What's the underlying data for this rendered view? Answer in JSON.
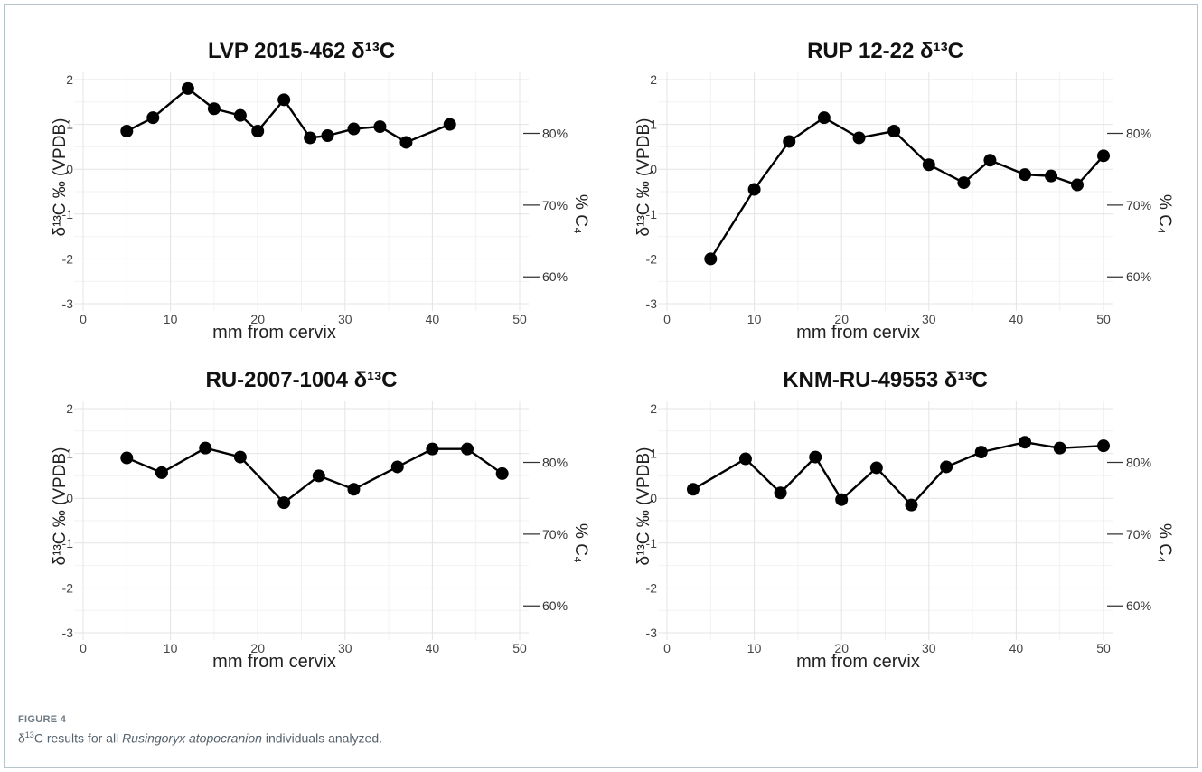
{
  "figure": {
    "label": "FIGURE 4",
    "caption_prefix": "δ",
    "caption_sup": "13",
    "caption_mid": "C results for all ",
    "caption_italic": "Rusingoryx atopocranion",
    "caption_suffix": " individuals analyzed."
  },
  "chart_data": [
    {
      "type": "line",
      "title": "LVP 2015-462 δ¹³C",
      "xlabel": "mm from cervix",
      "ylabel": "δ¹³C ‰ (VPDB)",
      "y2label": "% C₄",
      "xlim": [
        0,
        50
      ],
      "ylim": [
        -3,
        2
      ],
      "xticks": [
        "0",
        "10",
        "20",
        "30",
        "40",
        "50"
      ],
      "yticks": [
        "2",
        "1",
        "0",
        "-1",
        "-2",
        "-3"
      ],
      "y2ticks": [
        {
          "value": 0.8,
          "label": "80%"
        },
        {
          "value": -0.8,
          "label": "70%"
        },
        {
          "value": -2.4,
          "label": "60%"
        }
      ],
      "grid": true,
      "x": [
        5,
        8,
        12,
        15,
        18,
        20,
        23,
        26,
        28,
        31,
        34,
        37,
        42
      ],
      "y": [
        0.85,
        1.15,
        1.8,
        1.35,
        1.2,
        0.85,
        1.55,
        0.7,
        0.75,
        0.9,
        0.95,
        0.6,
        1.0
      ]
    },
    {
      "type": "line",
      "title": "RUP 12-22 δ¹³C",
      "xlabel": "mm from cervix",
      "ylabel": "δ¹³C ‰ (VPDB)",
      "y2label": "% C₄",
      "xlim": [
        0,
        50
      ],
      "ylim": [
        -3,
        2
      ],
      "xticks": [
        "0",
        "10",
        "20",
        "30",
        "40",
        "50"
      ],
      "yticks": [
        "2",
        "1",
        "0",
        "-1",
        "-2",
        "-3"
      ],
      "y2ticks": [
        {
          "value": 0.8,
          "label": "80%"
        },
        {
          "value": -0.8,
          "label": "70%"
        },
        {
          "value": -2.4,
          "label": "60%"
        }
      ],
      "grid": true,
      "x": [
        5,
        10,
        14,
        18,
        22,
        26,
        30,
        34,
        37,
        41,
        44,
        47,
        50
      ],
      "y": [
        -2.0,
        -0.45,
        0.62,
        1.15,
        0.7,
        0.85,
        0.1,
        -0.3,
        0.2,
        -0.12,
        -0.15,
        -0.35,
        0.3
      ]
    },
    {
      "type": "line",
      "title": "RU-2007-1004 δ¹³C",
      "xlabel": "mm from cervix",
      "ylabel": "δ¹³C ‰ (VPDB)",
      "y2label": "% C₄",
      "xlim": [
        0,
        50
      ],
      "ylim": [
        -3,
        2
      ],
      "xticks": [
        "0",
        "10",
        "20",
        "30",
        "40",
        "50"
      ],
      "yticks": [
        "2",
        "1",
        "0",
        "-1",
        "-2",
        "-3"
      ],
      "y2ticks": [
        {
          "value": 0.8,
          "label": "80%"
        },
        {
          "value": -0.8,
          "label": "70%"
        },
        {
          "value": -2.4,
          "label": "60%"
        }
      ],
      "grid": true,
      "x": [
        5,
        9,
        14,
        18,
        23,
        27,
        31,
        36,
        40,
        44,
        48
      ],
      "y": [
        0.9,
        0.57,
        1.12,
        0.92,
        -0.1,
        0.5,
        0.2,
        0.7,
        1.1,
        1.1,
        0.55
      ]
    },
    {
      "type": "line",
      "title": "KNM-RU-49553 δ¹³C",
      "xlabel": "mm from cervix",
      "ylabel": "δ¹³C ‰ (VPDB)",
      "y2label": "% C₄",
      "xlim": [
        0,
        50
      ],
      "ylim": [
        -3,
        2
      ],
      "xticks": [
        "0",
        "10",
        "20",
        "30",
        "40",
        "50"
      ],
      "yticks": [
        "2",
        "1",
        "0",
        "-1",
        "-2",
        "-3"
      ],
      "y2ticks": [
        {
          "value": 0.8,
          "label": "80%"
        },
        {
          "value": -0.8,
          "label": "70%"
        },
        {
          "value": -2.4,
          "label": "60%"
        }
      ],
      "grid": true,
      "x": [
        3,
        9,
        13,
        17,
        20,
        24,
        28,
        32,
        36,
        41,
        45,
        50
      ],
      "y": [
        0.2,
        0.88,
        0.12,
        0.92,
        -0.03,
        0.68,
        -0.15,
        0.7,
        1.03,
        1.25,
        1.12,
        1.17
      ]
    }
  ]
}
